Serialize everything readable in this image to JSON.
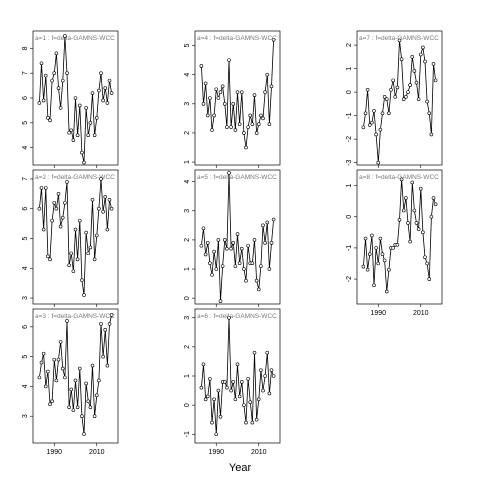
{
  "chart_data": {
    "type": "line",
    "layout": "3x3 grid of small-multiple panels, column-major; last column has 2 panels",
    "xlabel": "Year",
    "x_tick_labels": [
      "1990",
      "2010"
    ],
    "xlim": [
      1980,
      2020
    ],
    "series_style": "black line with open circle points",
    "panels": [
      {
        "label": "a=1  :  f=delta-GAMNS-WCC",
        "ylim": [
          3.3,
          8.7
        ],
        "yticks": [
          4,
          5,
          6,
          7,
          8
        ],
        "x": [
          1983,
          1984,
          1985,
          1986,
          1987,
          1988,
          1989,
          1990,
          1991,
          1992,
          1993,
          1994,
          1995,
          1996,
          1997,
          1998,
          1999,
          2000,
          2001,
          2002,
          2003,
          2004,
          2005,
          2006,
          2007,
          2008,
          2009,
          2010,
          2011,
          2012,
          2013,
          2014,
          2015,
          2016,
          2017
        ],
        "values": [
          5.8,
          7.4,
          5.9,
          6.9,
          5.2,
          5.1,
          6.7,
          7.0,
          7.8,
          6.4,
          5.6,
          6.7,
          8.5,
          7.0,
          4.6,
          4.7,
          4.3,
          6.0,
          4.5,
          5.7,
          3.8,
          3.4,
          5.6,
          4.5,
          5.0,
          6.2,
          4.5,
          5.2,
          6.3,
          7.0,
          5.9,
          6.4,
          5.8,
          6.7,
          6.2
        ]
      },
      {
        "label": "a=2  :  f=delta-GAMNS-WCC",
        "ylim": [
          2.8,
          7.3
        ],
        "yticks": [
          3,
          4,
          5,
          6,
          7
        ],
        "x": [
          1983,
          1984,
          1985,
          1986,
          1987,
          1988,
          1989,
          1990,
          1991,
          1992,
          1993,
          1994,
          1995,
          1996,
          1997,
          1998,
          1999,
          2000,
          2001,
          2002,
          2003,
          2004,
          2005,
          2006,
          2007,
          2008,
          2009,
          2010,
          2011,
          2012,
          2013,
          2014,
          2015,
          2016,
          2017
        ],
        "values": [
          6.0,
          6.7,
          5.3,
          6.7,
          4.4,
          4.3,
          5.6,
          6.2,
          6.0,
          6.5,
          5.4,
          5.7,
          6.2,
          6.9,
          4.1,
          4.5,
          3.9,
          5.3,
          4.3,
          5.6,
          3.6,
          3.1,
          5.2,
          4.5,
          4.7,
          6.3,
          4.3,
          5.1,
          6.0,
          7.0,
          5.9,
          6.4,
          5.3,
          6.3,
          6.0
        ]
      },
      {
        "label": "a=3  :  f=delta-GAMNS-WCC",
        "ylim": [
          2.1,
          6.6
        ],
        "yticks": [
          3,
          4,
          5,
          6
        ],
        "x": [
          1983,
          1984,
          1985,
          1986,
          1987,
          1988,
          1989,
          1990,
          1991,
          1992,
          1993,
          1994,
          1995,
          1996,
          1997,
          1998,
          1999,
          2000,
          2001,
          2002,
          2003,
          2004,
          2005,
          2006,
          2007,
          2008,
          2009,
          2010,
          2011,
          2012,
          2013,
          2014,
          2015,
          2016,
          2017
        ],
        "values": [
          4.3,
          4.8,
          5.1,
          4.0,
          4.5,
          3.4,
          3.5,
          4.9,
          4.2,
          4.9,
          5.5,
          4.6,
          4.3,
          6.2,
          3.3,
          3.9,
          3.2,
          4.2,
          3.3,
          4.6,
          3.0,
          2.4,
          4.1,
          3.5,
          3.3,
          4.7,
          3.0,
          3.7,
          4.2,
          6.1,
          5.0,
          5.9,
          4.7,
          6.1,
          6.4
        ]
      },
      {
        "label": "a=4  :  f=delta-GAMNS-WCC",
        "ylim": [
          0.9,
          5.5
        ],
        "yticks": [
          1,
          2,
          3,
          4,
          5
        ],
        "x": [
          1983,
          1984,
          1985,
          1986,
          1987,
          1988,
          1989,
          1990,
          1991,
          1992,
          1993,
          1994,
          1995,
          1996,
          1997,
          1998,
          1999,
          2000,
          2001,
          2002,
          2003,
          2004,
          2005,
          2006,
          2007,
          2008,
          2009,
          2010,
          2011,
          2012,
          2013,
          2014,
          2015,
          2016,
          2017
        ],
        "values": [
          4.3,
          3.0,
          3.7,
          2.6,
          3.2,
          2.1,
          2.6,
          3.5,
          3.2,
          3.4,
          3.6,
          3.0,
          2.2,
          4.5,
          2.2,
          3.0,
          2.1,
          3.4,
          2.3,
          3.4,
          2.0,
          1.5,
          2.2,
          2.6,
          2.3,
          3.3,
          2.0,
          2.3,
          2.6,
          2.5,
          3.4,
          4.0,
          2.3,
          3.6,
          5.2
        ]
      },
      {
        "label": "a=5  :  f=delta-GAMNS-WCC",
        "ylim": [
          -0.2,
          4.4
        ],
        "yticks": [
          0,
          1,
          2,
          3,
          4
        ],
        "x": [
          1983,
          1984,
          1985,
          1986,
          1987,
          1988,
          1989,
          1990,
          1991,
          1992,
          1993,
          1994,
          1995,
          1996,
          1997,
          1998,
          1999,
          2000,
          2001,
          2002,
          2003,
          2004,
          2005,
          2006,
          2007,
          2008,
          2009,
          2010,
          2011,
          2012,
          2013,
          2014,
          2015,
          2016,
          2017
        ],
        "values": [
          1.8,
          2.4,
          1.5,
          1.9,
          1.2,
          0.8,
          1.6,
          1.0,
          2.0,
          -0.1,
          1.1,
          2.0,
          1.7,
          4.3,
          1.7,
          1.9,
          1.1,
          2.2,
          1.2,
          1.7,
          1.0,
          0.6,
          1.8,
          1.2,
          1.2,
          2.0,
          0.6,
          0.3,
          1.1,
          2.5,
          1.9,
          2.6,
          1.0,
          1.9,
          2.7
        ]
      },
      {
        "label": "a=6  :  f=delta-GAMNS-WCC",
        "ylim": [
          -1.3,
          3.3
        ],
        "yticks": [
          -1,
          0,
          1,
          2,
          3
        ],
        "x": [
          1983,
          1984,
          1985,
          1986,
          1987,
          1988,
          1989,
          1990,
          1991,
          1992,
          1993,
          1994,
          1995,
          1996,
          1997,
          1998,
          1999,
          2000,
          2001,
          2002,
          2003,
          2004,
          2005,
          2006,
          2007,
          2008,
          2009,
          2010,
          2011,
          2012,
          2013,
          2014,
          2015,
          2016,
          2017
        ],
        "values": [
          0.6,
          1.4,
          0.2,
          0.3,
          0.9,
          -0.6,
          0.2,
          -1.0,
          0.5,
          -0.4,
          0.8,
          0.8,
          0.6,
          3.0,
          0.5,
          0.8,
          0.2,
          1.4,
          0.3,
          0.8,
          0.0,
          -0.6,
          0.9,
          0.1,
          -0.6,
          1.8,
          -0.5,
          0.2,
          1.2,
          0.5,
          1.0,
          1.8,
          0.4,
          1.2,
          1.0
        ]
      },
      {
        "label": "a=7  :  f=delta-GAMNS-WCC",
        "ylim": [
          -3.1,
          2.6
        ],
        "yticks": [
          -3,
          -2,
          -1,
          0,
          1,
          2
        ],
        "x": [
          1983,
          1984,
          1985,
          1986,
          1987,
          1988,
          1989,
          1990,
          1991,
          1992,
          1993,
          1994,
          1995,
          1996,
          1997,
          1998,
          1999,
          2000,
          2001,
          2002,
          2003,
          2004,
          2005,
          2006,
          2007,
          2008,
          2009,
          2010,
          2011,
          2012,
          2013,
          2014,
          2015,
          2016,
          2017
        ],
        "values": [
          -1.5,
          -0.9,
          0.1,
          -1.4,
          -1.3,
          -0.8,
          -1.8,
          -3.0,
          -1.6,
          -0.9,
          -0.2,
          -0.3,
          -0.9,
          0.1,
          0.5,
          -0.2,
          0.2,
          2.2,
          1.4,
          -0.3,
          -0.2,
          0.0,
          0.3,
          1.5,
          0.9,
          0.4,
          -0.3,
          1.6,
          1.9,
          1.3,
          -0.4,
          -0.9,
          -1.8,
          1.2,
          0.5
        ]
      },
      {
        "label": "a=8  :  f=delta-GAMNS-WCC",
        "ylim": [
          -2.8,
          1.5
        ],
        "yticks": [
          -2,
          -1,
          0,
          1
        ],
        "x": [
          1983,
          1984,
          1985,
          1986,
          1987,
          1988,
          1989,
          1990,
          1991,
          1992,
          1993,
          1994,
          1995,
          1996,
          1997,
          1998,
          1999,
          2000,
          2001,
          2002,
          2003,
          2004,
          2005,
          2006,
          2007,
          2008,
          2009,
          2010,
          2011,
          2012,
          2013,
          2014,
          2015,
          2016,
          2017
        ],
        "values": [
          -1.6,
          -0.7,
          -1.7,
          -1.2,
          -0.6,
          -2.2,
          -1.0,
          -1.5,
          -0.7,
          -1.2,
          -1.4,
          -2.4,
          -1.7,
          -1.0,
          -1.0,
          -0.9,
          -0.9,
          -0.1,
          1.2,
          0.2,
          0.6,
          -0.2,
          -0.8,
          1.1,
          0.2,
          -0.2,
          -0.4,
          0.9,
          -0.5,
          -1.3,
          -1.5,
          -2.0,
          0.0,
          0.6,
          0.4
        ]
      }
    ]
  }
}
